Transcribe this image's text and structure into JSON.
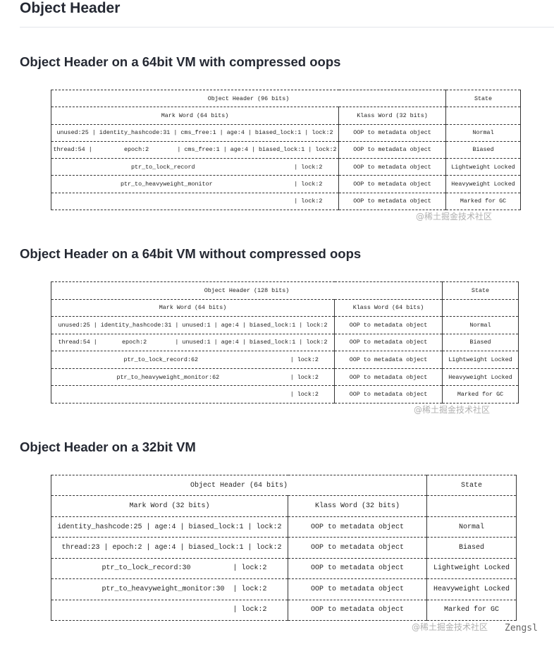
{
  "page_title": "Object Header",
  "watermark": "@稀土掘金技术社区",
  "author": "Zengsl",
  "sections": [
    {
      "heading": "Object Header on a 64bit VM with compressed oops",
      "header": "Object Header (96 bits)",
      "state_header": "State",
      "mark_header": "Mark Word (64 bits)",
      "klass_header": "Klass Word (32 bits)",
      "rows": [
        {
          "mark": "unused:25 | identity_hashcode:31 | cms_free:1 | age:4 | biased_lock:1 | lock:2",
          "klass": "OOP to metadata object",
          "state": "Normal"
        },
        {
          "mark": "thread:54 |         epoch:2        | cms_free:1 | age:4 | biased_lock:1 | lock:2",
          "klass": "OOP to metadata object",
          "state": "Biased"
        },
        {
          "mark": "                  ptr_to_lock_record                            | lock:2",
          "klass": "OOP to metadata object",
          "state": "Lightweight Locked"
        },
        {
          "mark": "               ptr_to_heavyweight_monitor                       | lock:2",
          "klass": "OOP to metadata object",
          "state": "Heavyweight Locked"
        },
        {
          "mark": "                                                                | lock:2",
          "klass": "OOP to metadata object",
          "state": "Marked for GC"
        }
      ]
    },
    {
      "heading": "Object Header on a 64bit VM without compressed oops",
      "header": "Object Header (128 bits)",
      "state_header": "State",
      "mark_header": "Mark Word (64 bits)",
      "klass_header": "Klass Word (64 bits)",
      "rows": [
        {
          "mark": "unused:25 | identity_hashcode:31 | unused:1 | age:4 | biased_lock:1 | lock:2",
          "klass": "OOP to metadata object",
          "state": "Normal"
        },
        {
          "mark": "thread:54 |       epoch:2        | unused:1 | age:4 | biased_lock:1 | lock:2",
          "klass": "OOP to metadata object",
          "state": "Biased"
        },
        {
          "mark": "                ptr_to_lock_record:62                          | lock:2",
          "klass": "OOP to metadata object",
          "state": "Lightweight Locked"
        },
        {
          "mark": "              ptr_to_heavyweight_monitor:62                    | lock:2",
          "klass": "OOP to metadata object",
          "state": "Heavyweight Locked"
        },
        {
          "mark": "                                                               | lock:2",
          "klass": "OOP to metadata object",
          "state": "Marked for GC"
        }
      ]
    },
    {
      "heading": "Object Header on a 32bit VM",
      "header": "Object Header (64 bits)",
      "state_header": "State",
      "mark_header": "Mark Word (32 bits)",
      "klass_header": "Klass Word (32 bits)",
      "rows": [
        {
          "mark": "identity_hashcode:25 | age:4 | biased_lock:1 | lock:2",
          "klass": "OOP to metadata object",
          "state": "Normal"
        },
        {
          "mark": " thread:23 | epoch:2 | age:4 | biased_lock:1 | lock:2",
          "klass": "OOP to metadata object",
          "state": "Biased"
        },
        {
          "mark": "       ptr_to_lock_record:30          | lock:2",
          "klass": "OOP to metadata object",
          "state": "Lightweight Locked"
        },
        {
          "mark": "       ptr_to_heavyweight_monitor:30  | lock:2",
          "klass": "OOP to metadata object",
          "state": "Heavyweight Locked"
        },
        {
          "mark": "                                      | lock:2",
          "klass": "OOP to metadata object",
          "state": "Marked for GC"
        }
      ]
    }
  ]
}
